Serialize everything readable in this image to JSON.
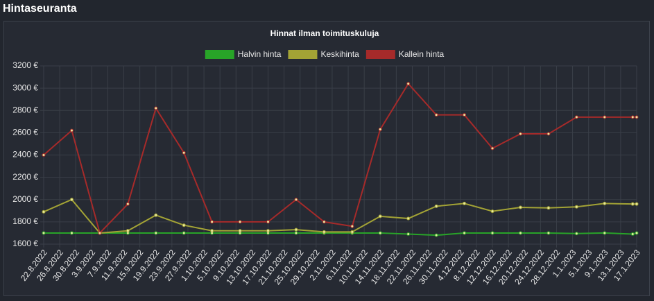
{
  "header": {
    "title": "Hintaseuranta"
  },
  "chart_data": {
    "type": "line",
    "title": "Hinnat ilman toimituskuluja",
    "x": [
      "22.8.2022",
      "29.8.2022",
      "5.9.2022",
      "12.9.2022",
      "19.9.2022",
      "26.9.2022",
      "3.10.2022",
      "10.10.2022",
      "17.10.2022",
      "24.10.2022",
      "31.10.2022",
      "7.11.2022",
      "14.11.2022",
      "21.11.2022",
      "28.11.2022",
      "5.12.2022",
      "12.12.2022",
      "19.12.2022",
      "26.12.2022",
      "2.1.2023",
      "9.1.2023",
      "16.1.2023",
      "17.1.2023"
    ],
    "xlim": [
      "22.8.2022",
      "17.1.2023"
    ],
    "xticks": [
      "22.8.2022",
      "26.8.2022",
      "30.8.2022",
      "3.9.2022",
      "7.9.2022",
      "11.9.2022",
      "15.9.2022",
      "19.9.2022",
      "23.9.2022",
      "27.9.2022",
      "1.10.2022",
      "5.10.2022",
      "9.10.2022",
      "13.10.2022",
      "17.10.2022",
      "21.10.2022",
      "25.10.2022",
      "29.10.2022",
      "2.11.2022",
      "6.11.2022",
      "10.11.2022",
      "14.11.2022",
      "18.11.2022",
      "22.11.2022",
      "26.11.2022",
      "30.11.2022",
      "4.12.2022",
      "8.12.2022",
      "12.12.2022",
      "16.12.2022",
      "20.12.2022",
      "24.12.2022",
      "28.12.2022",
      "1.1.2023",
      "5.1.2023",
      "9.1.2023",
      "13.1.2023",
      "17.1.2023"
    ],
    "ylim": [
      1600,
      3200
    ],
    "yticks": [
      {
        "value": 1600,
        "label": "1600 €"
      },
      {
        "value": 1800,
        "label": "1800 €"
      },
      {
        "value": 2000,
        "label": "2000 €"
      },
      {
        "value": 2200,
        "label": "2200 €"
      },
      {
        "value": 2400,
        "label": "2400 €"
      },
      {
        "value": 2600,
        "label": "2600 €"
      },
      {
        "value": 2800,
        "label": "2800 €"
      },
      {
        "value": 3000,
        "label": "3000 €"
      },
      {
        "value": 3200,
        "label": "3200 €"
      }
    ],
    "grid": true,
    "legend": "top",
    "series": [
      {
        "name": "Halvin hinta",
        "color": "#28a428",
        "values": [
          1700,
          1700,
          1700,
          1700,
          1700,
          1700,
          1700,
          1700,
          1700,
          1700,
          1700,
          1700,
          1700,
          1690,
          1680,
          1700,
          1700,
          1700,
          1700,
          1695,
          1700,
          1690,
          1700
        ]
      },
      {
        "name": "Keskihinta",
        "color": "#a3a335",
        "values": [
          1890,
          2000,
          1700,
          1720,
          1860,
          1770,
          1720,
          1720,
          1720,
          1730,
          1710,
          1710,
          1850,
          1830,
          1940,
          1965,
          1895,
          1930,
          1925,
          1935,
          1965,
          1960,
          1960
        ]
      },
      {
        "name": "Kallein hinta",
        "color": "#a62a2a",
        "values": [
          2400,
          2620,
          1700,
          1960,
          2820,
          2420,
          1800,
          1800,
          1800,
          2000,
          1800,
          1760,
          2630,
          3040,
          2760,
          2760,
          2460,
          2590,
          2590,
          2740,
          2740,
          2740,
          2740
        ]
      }
    ]
  }
}
